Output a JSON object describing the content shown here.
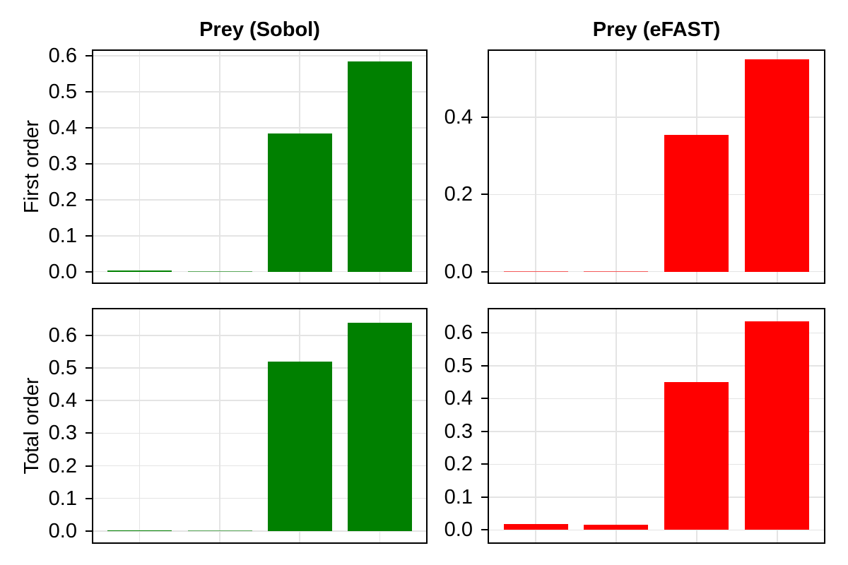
{
  "figure": {
    "background": "#ffffff",
    "colors": {
      "sobol_green": "#008000",
      "efast_red": "#ff0000",
      "grid": "#e4e4e4",
      "frame": "#000000",
      "text": "#000000"
    }
  },
  "chart_data": [
    {
      "type": "bar",
      "id": "prey-sobol-first-order",
      "title": "Prey (Sobol)",
      "ylabel": "First order",
      "xlabel": "",
      "x": [
        1,
        2,
        3,
        4
      ],
      "xticklabels": [],
      "values": [
        0.003,
        0.001,
        0.385,
        0.585
      ],
      "yticks": [
        0.0,
        0.1,
        0.2,
        0.3,
        0.4,
        0.5,
        0.6
      ],
      "ylim": [
        -0.03,
        0.614
      ],
      "xlim": [
        0.42,
        4.58
      ],
      "bar_width": 0.8,
      "bar_color": "#008000",
      "grid": true,
      "legend": "none"
    },
    {
      "type": "bar",
      "id": "prey-efast-first-order",
      "title": "Prey (eFAST)",
      "ylabel": "",
      "xlabel": "",
      "x": [
        1,
        2,
        3,
        4
      ],
      "xticklabels": [],
      "values": [
        0.001,
        0.001,
        0.355,
        0.55
      ],
      "yticks": [
        0.0,
        0.2,
        0.4
      ],
      "ylim": [
        -0.028,
        0.572
      ],
      "xlim": [
        0.42,
        4.58
      ],
      "bar_width": 0.8,
      "bar_color": "#ff0000",
      "grid": true,
      "legend": "none"
    },
    {
      "type": "bar",
      "id": "prey-sobol-total-order",
      "title": "",
      "ylabel": "Total order",
      "xlabel": "",
      "x": [
        1,
        2,
        3,
        4
      ],
      "xticklabels": [],
      "values": [
        0.003,
        0.002,
        0.52,
        0.64
      ],
      "yticks": [
        0.0,
        0.1,
        0.2,
        0.3,
        0.4,
        0.5,
        0.6
      ],
      "ylim": [
        -0.035,
        0.68
      ],
      "xlim": [
        0.42,
        4.58
      ],
      "bar_width": 0.8,
      "bar_color": "#008000",
      "grid": true,
      "legend": "none"
    },
    {
      "type": "bar",
      "id": "prey-efast-total-order",
      "title": "",
      "ylabel": "",
      "xlabel": "",
      "x": [
        1,
        2,
        3,
        4
      ],
      "xticklabels": [],
      "values": [
        0.017,
        0.015,
        0.45,
        0.635
      ],
      "yticks": [
        0.0,
        0.1,
        0.2,
        0.3,
        0.4,
        0.5,
        0.6
      ],
      "ylim": [
        -0.038,
        0.672
      ],
      "xlim": [
        0.42,
        4.58
      ],
      "bar_width": 0.8,
      "bar_color": "#ff0000",
      "grid": true,
      "legend": "none"
    }
  ]
}
